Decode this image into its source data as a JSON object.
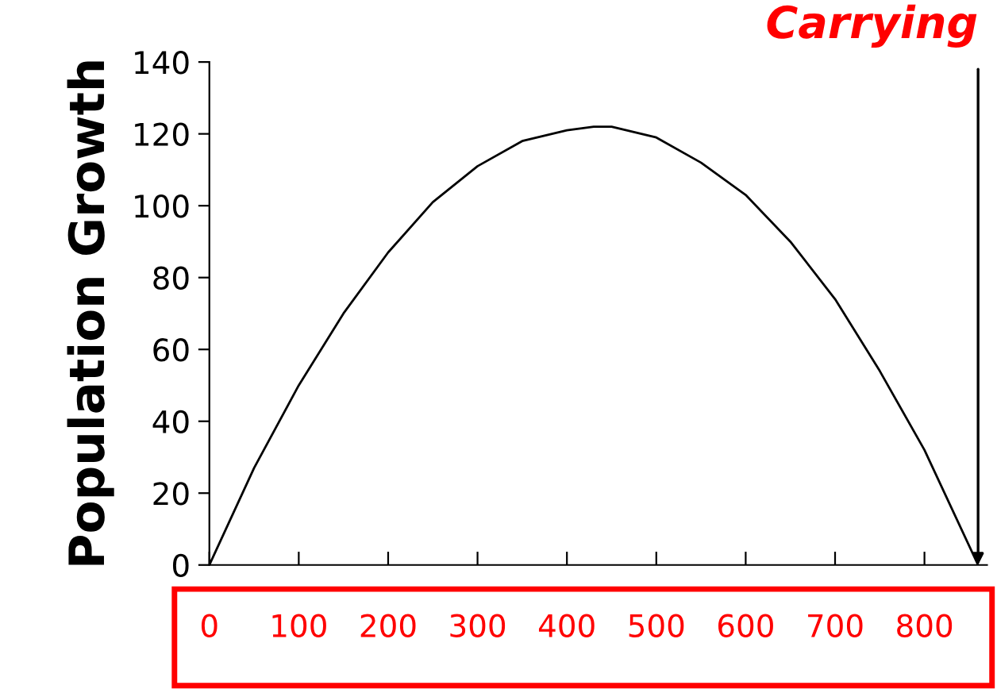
{
  "chart_data": {
    "type": "line",
    "ylabel": "Population Growth",
    "x": [
      0,
      50,
      100,
      150,
      200,
      250,
      300,
      350,
      400,
      430,
      450,
      500,
      550,
      600,
      650,
      700,
      750,
      800,
      860
    ],
    "series": [
      {
        "color": "#000000",
        "values": [
          0,
          27,
          50,
          70,
          87,
          101,
          111,
          118,
          121,
          122,
          122,
          119,
          112,
          103,
          90,
          74,
          54,
          32,
          0
        ]
      }
    ],
    "xlim": [
      0,
      870
    ],
    "ylim": [
      0,
      140
    ],
    "xticks": [
      0,
      100,
      200,
      300,
      400,
      500,
      600,
      700,
      800
    ],
    "yticks": [
      0,
      20,
      40,
      60,
      80,
      100,
      120,
      140
    ],
    "annotations": [
      {
        "text": "Carrying",
        "x": 860,
        "y": 0
      }
    ],
    "grid": false,
    "legend": false,
    "marker": "none",
    "line_style": "solid"
  }
}
